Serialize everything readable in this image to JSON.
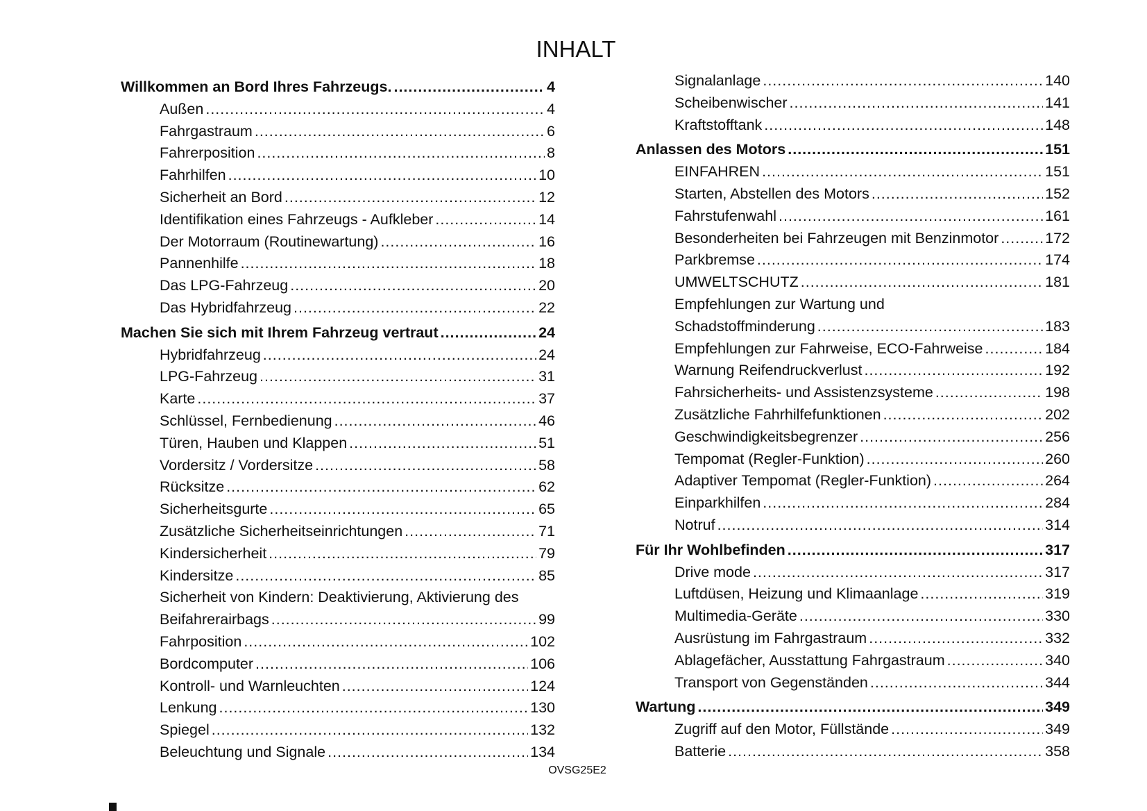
{
  "title": "INHALT",
  "footer_code": "OVSG25E2",
  "left_column": [
    {
      "level": "chapter",
      "text": "Willkommen an Bord Ihres Fahrzeugs.",
      "page": "4"
    },
    {
      "level": "section",
      "text": "Außen",
      "page": "4"
    },
    {
      "level": "section",
      "text": "Fahrgastraum",
      "page": "6"
    },
    {
      "level": "section",
      "text": "Fahrerposition",
      "page": "8"
    },
    {
      "level": "section",
      "text": "Fahrhilfen",
      "page": "10"
    },
    {
      "level": "section",
      "text": "Sicherheit an Bord",
      "page": "12"
    },
    {
      "level": "section",
      "text": "Identifikation eines Fahrzeugs - Aufkleber",
      "page": "14"
    },
    {
      "level": "section",
      "text": "Der Motorraum (Routinewartung)",
      "page": "16"
    },
    {
      "level": "section",
      "text": "Pannenhilfe",
      "page": "18"
    },
    {
      "level": "section",
      "text": "Das LPG-Fahrzeug",
      "page": "20"
    },
    {
      "level": "section",
      "text": "Das Hybridfahrzeug",
      "page": "22"
    },
    {
      "level": "chapter",
      "text": "Machen Sie sich mit Ihrem Fahrzeug vertraut",
      "page": "24"
    },
    {
      "level": "section",
      "text": "Hybridfahrzeug",
      "page": "24"
    },
    {
      "level": "section",
      "text": "LPG-Fahrzeug",
      "page": "31"
    },
    {
      "level": "section",
      "text": "Karte",
      "page": "37"
    },
    {
      "level": "section",
      "text": "Schlüssel, Fernbedienung",
      "page": "46"
    },
    {
      "level": "section",
      "text": "Türen, Hauben und Klappen",
      "page": "51"
    },
    {
      "level": "section",
      "text": "Vordersitz / Vordersitze",
      "page": "58"
    },
    {
      "level": "section",
      "text": "Rücksitze",
      "page": "62"
    },
    {
      "level": "section",
      "text": "Sicherheitsgurte",
      "page": "65"
    },
    {
      "level": "section",
      "text": "Zusätzliche Sicherheitseinrichtungen",
      "page": "71"
    },
    {
      "level": "section",
      "text": "Kindersicherheit",
      "page": "79"
    },
    {
      "level": "section",
      "text": "Kindersitze",
      "page": "85"
    },
    {
      "level": "section",
      "text": "Sicherheit von Kindern: Deaktivierung, Aktivierung des",
      "continuation": "Beifahrerairbags",
      "page": "99"
    },
    {
      "level": "section",
      "text": "Fahrposition",
      "page": "102"
    },
    {
      "level": "section",
      "text": "Bordcomputer",
      "page": "106"
    },
    {
      "level": "section",
      "text": "Kontroll- und Warnleuchten",
      "page": "124"
    },
    {
      "level": "section",
      "text": "Lenkung",
      "page": "130"
    },
    {
      "level": "section",
      "text": "Spiegel",
      "page": "132"
    },
    {
      "level": "section",
      "text": "Beleuchtung und Signale",
      "page": "134"
    }
  ],
  "right_column": [
    {
      "level": "section",
      "text": "Signalanlage",
      "page": "140"
    },
    {
      "level": "section",
      "text": "Scheibenwischer",
      "page": "141"
    },
    {
      "level": "section",
      "text": "Kraftstofftank",
      "page": "148"
    },
    {
      "level": "chapter",
      "text": "Anlassen des Motors",
      "page": "151"
    },
    {
      "level": "section",
      "text": "EINFAHREN",
      "page": "151"
    },
    {
      "level": "section",
      "text": "Starten, Abstellen des Motors",
      "page": "152"
    },
    {
      "level": "section",
      "text": "Fahrstufenwahl",
      "page": "161"
    },
    {
      "level": "section",
      "text": "Besonderheiten bei Fahrzeugen mit Benzinmotor",
      "page": "172"
    },
    {
      "level": "section",
      "text": "Parkbremse",
      "page": "174"
    },
    {
      "level": "section",
      "text": "UMWELTSCHUTZ",
      "page": "181"
    },
    {
      "level": "section",
      "text": "Empfehlungen zur Wartung und",
      "continuation": "Schadstoffminderung",
      "page": "183"
    },
    {
      "level": "section",
      "text": "Empfehlungen zur Fahrweise, ECO-Fahrweise",
      "page": "184"
    },
    {
      "level": "section",
      "text": "Warnung Reifendruckverlust",
      "page": "192"
    },
    {
      "level": "section",
      "text": "Fahrsicherheits- und Assistenzsysteme",
      "page": "198"
    },
    {
      "level": "section",
      "text": "Zusätzliche Fahrhilfefunktionen",
      "page": "202"
    },
    {
      "level": "section",
      "text": "Geschwindigkeitsbegrenzer",
      "page": "256"
    },
    {
      "level": "section",
      "text": "Tempomat (Regler-Funktion)",
      "page": "260"
    },
    {
      "level": "section",
      "text": "Adaptiver Tempomat (Regler-Funktion)",
      "page": "264"
    },
    {
      "level": "section",
      "text": "Einparkhilfen",
      "page": "284"
    },
    {
      "level": "section",
      "text": "Notruf",
      "page": "314"
    },
    {
      "level": "chapter",
      "text": "Für Ihr Wohlbefinden",
      "page": "317"
    },
    {
      "level": "section",
      "text": "Drive mode",
      "page": "317"
    },
    {
      "level": "section",
      "text": "Luftdüsen, Heizung und Klimaanlage",
      "page": "319"
    },
    {
      "level": "section",
      "text": "Multimedia-Geräte",
      "page": "330"
    },
    {
      "level": "section",
      "text": "Ausrüstung im Fahrgastraum",
      "page": "332"
    },
    {
      "level": "section",
      "text": "Ablagefächer, Ausstattung Fahrgastraum",
      "page": "340"
    },
    {
      "level": "section",
      "text": "Transport von Gegenständen",
      "page": "344"
    },
    {
      "level": "chapter",
      "text": "Wartung",
      "page": "349"
    },
    {
      "level": "section",
      "text": "Zugriff auf den Motor, Füllstände",
      "page": "349"
    },
    {
      "level": "section",
      "text": "Batterie",
      "page": "358"
    }
  ]
}
